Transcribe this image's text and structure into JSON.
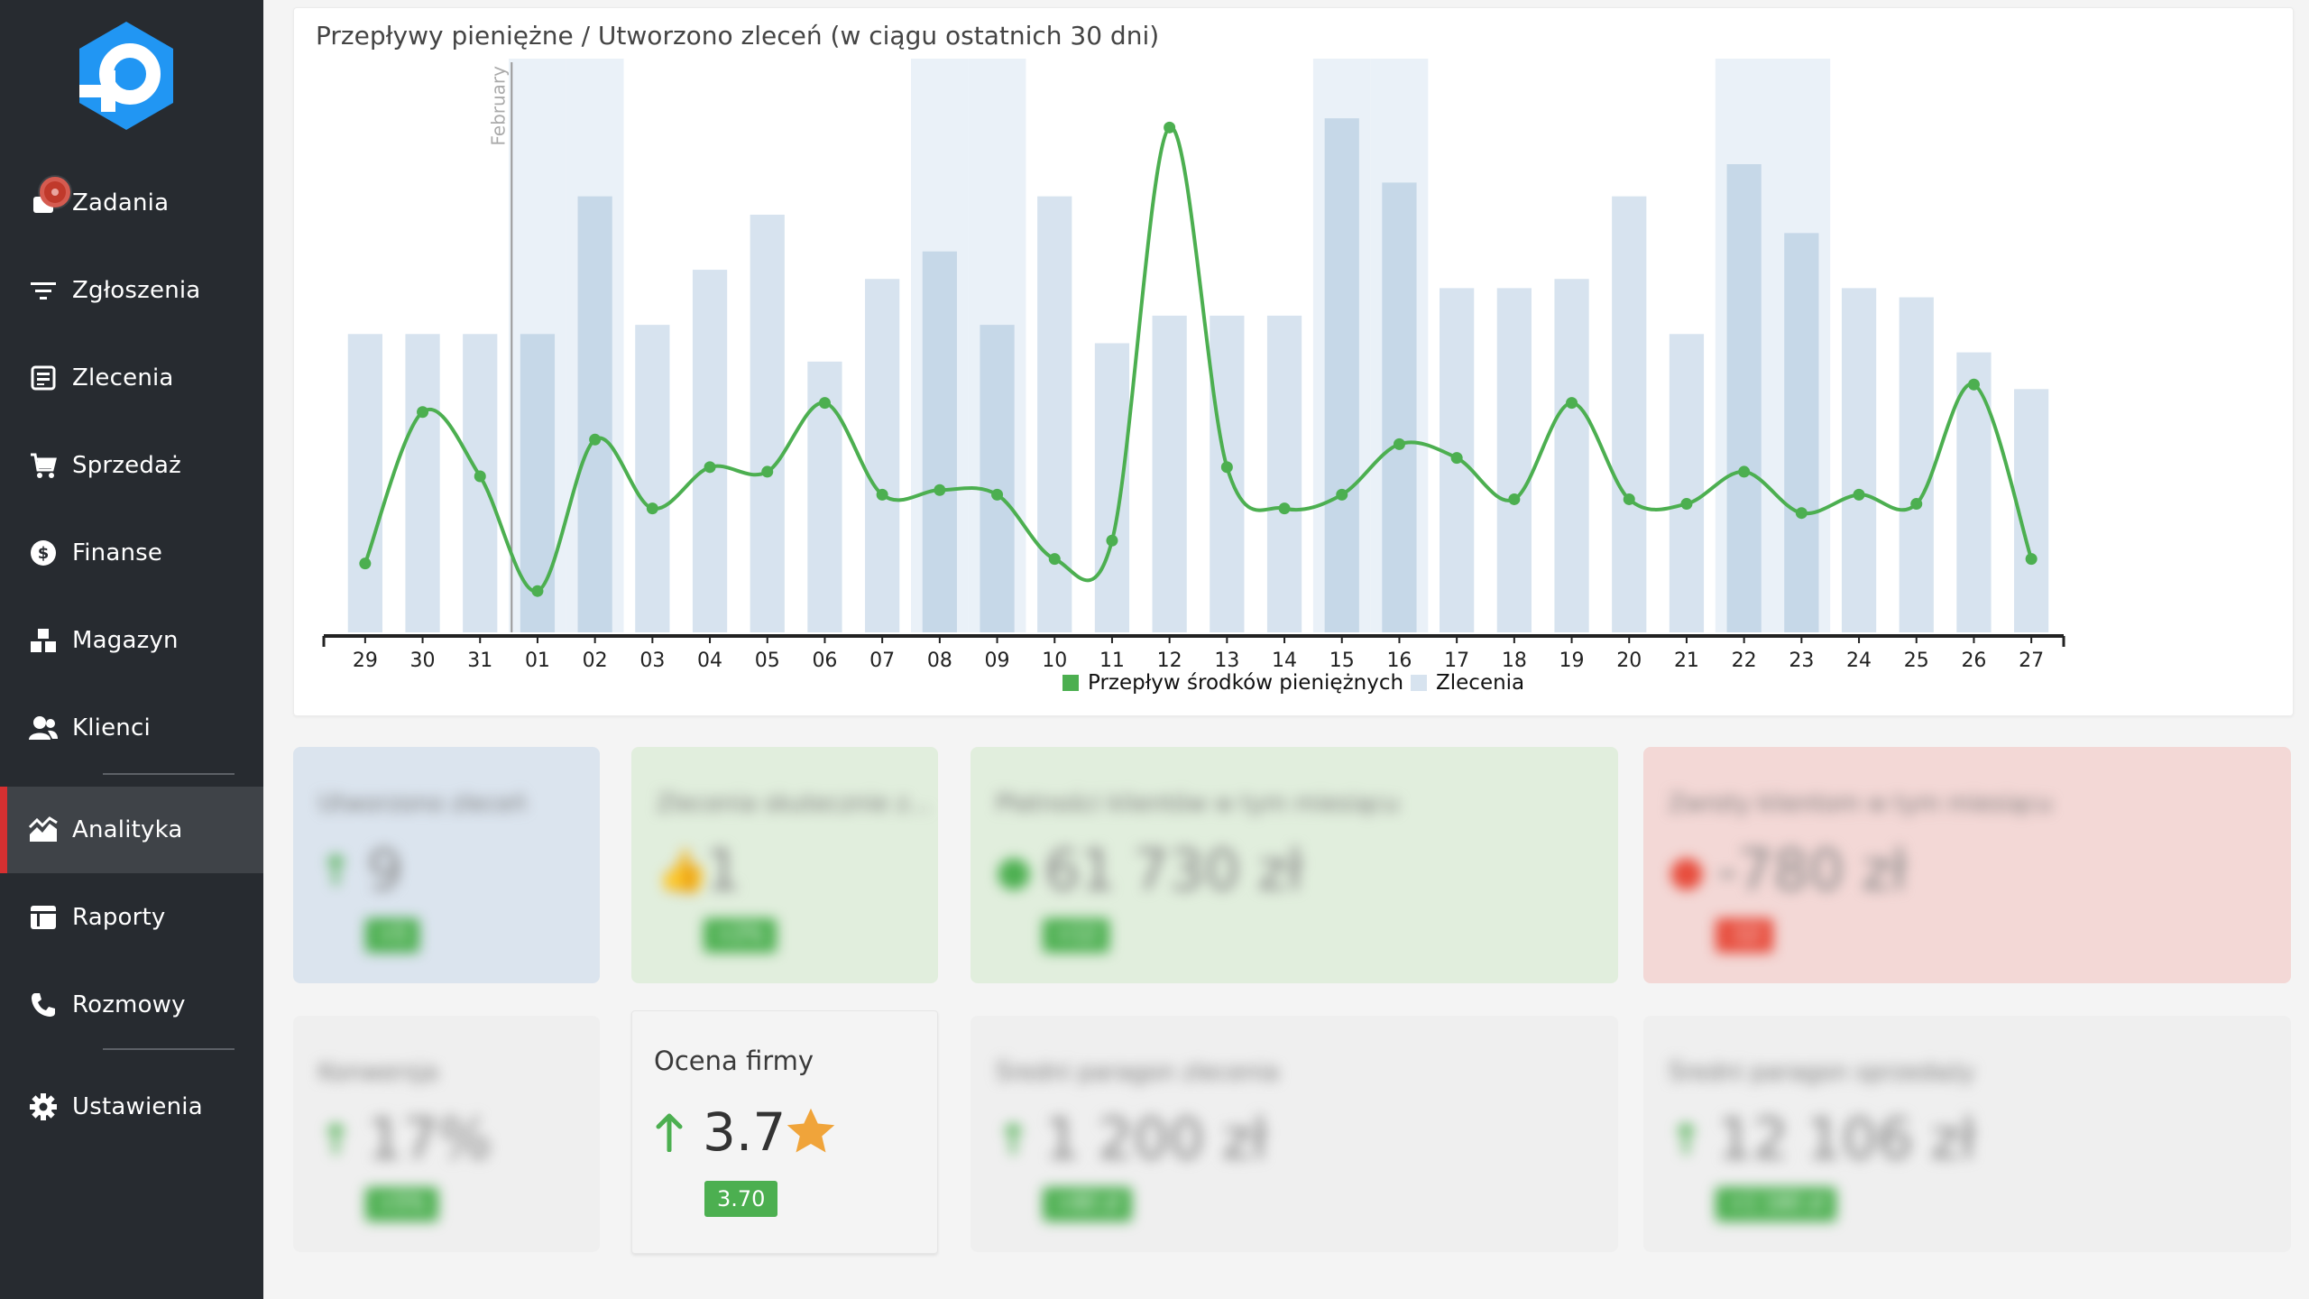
{
  "sidebar": {
    "items": [
      {
        "label": "Zadania",
        "icon": "tasks-icon"
      },
      {
        "label": "Zgłoszenia",
        "icon": "filter-icon"
      },
      {
        "label": "Zlecenia",
        "icon": "orders-icon"
      },
      {
        "label": "Sprzedaż",
        "icon": "cart-icon"
      },
      {
        "label": "Finanse",
        "icon": "dollar-icon"
      },
      {
        "label": "Magazyn",
        "icon": "warehouse-icon"
      },
      {
        "label": "Klienci",
        "icon": "users-icon"
      },
      {
        "label": "Analityka",
        "icon": "analytics-icon",
        "active": true
      },
      {
        "label": "Raporty",
        "icon": "reports-icon"
      },
      {
        "label": "Rozmowy",
        "icon": "phone-icon"
      },
      {
        "label": "Ustawienia",
        "icon": "gear-icon"
      }
    ]
  },
  "chart": {
    "title": "Przepływy pieniężne / Utworzono zleceń (w ciągu ostatnich 30 dni)",
    "month_marker": "February",
    "legend": {
      "series1": "Przepływ środków pieniężnych",
      "series2": "Zlecenia"
    }
  },
  "chart_data": {
    "type": "bar",
    "categories": [
      "29",
      "30",
      "31",
      "01",
      "02",
      "03",
      "04",
      "05",
      "06",
      "07",
      "08",
      "09",
      "10",
      "11",
      "12",
      "13",
      "14",
      "15",
      "16",
      "17",
      "18",
      "19",
      "20",
      "21",
      "22",
      "23",
      "24",
      "25",
      "26",
      "27"
    ],
    "series": [
      {
        "name": "Zlecenia",
        "type": "bar",
        "values": [
          6.5,
          6.5,
          6.5,
          6.5,
          9.5,
          6.7,
          7.9,
          9.1,
          5.9,
          7.7,
          8.3,
          6.7,
          9.5,
          6.3,
          6.9,
          6.9,
          6.9,
          11.2,
          9.8,
          7.5,
          7.5,
          7.7,
          9.5,
          6.5,
          10.2,
          8.7,
          7.5,
          7.3,
          6.1,
          5.3
        ]
      },
      {
        "name": "Przepływ środków pieniężnych",
        "type": "line",
        "values": [
          1.5,
          4.8,
          3.4,
          0.9,
          4.2,
          2.7,
          3.6,
          3.5,
          5.0,
          3.0,
          3.1,
          3.0,
          1.6,
          2.0,
          11.0,
          3.6,
          2.7,
          3.0,
          4.1,
          3.8,
          2.9,
          5.0,
          2.9,
          2.8,
          3.5,
          2.6,
          3.0,
          2.8,
          5.4,
          1.6
        ]
      }
    ],
    "highlighted_categories": [
      "01",
      "02",
      "08",
      "09",
      "15",
      "16",
      "22",
      "23"
    ],
    "ylim": [
      0,
      12.5
    ],
    "colors": {
      "bar": "#d7e3ef",
      "bar_highlight": "#c6d8e8",
      "band": "#eaf1f8",
      "line": "#4caf50"
    },
    "grid": false,
    "legend_position": "bottom-center"
  },
  "stats": [
    {
      "title": "Utworzono zleceń",
      "value": "9",
      "badge": "+5",
      "arrow": "↑",
      "color": "blue"
    },
    {
      "title": "Zlecenia skutecznie z...",
      "value": "1",
      "badge": "+2%",
      "arrow": "👍",
      "color": "green"
    },
    {
      "title": "Płatności klientów w tym miesiącu",
      "value": "61 730 zł",
      "badge": "+12",
      "arrow": "●",
      "color": "green"
    },
    {
      "title": "Zwroty klientom w tym miesiącu",
      "value": "-780 zł",
      "badge": "-12",
      "arrow": "●",
      "color": "red"
    },
    {
      "title": "Konwersja",
      "value": "17%",
      "badge": "+5%",
      "arrow": "↑",
      "color": "grey"
    },
    {
      "title": "Średni paragon zlecenia",
      "value": "1 200 zł",
      "badge": "+80 zł",
      "arrow": "↑",
      "color": "grey"
    },
    {
      "title": "Średni paragon sprzedaży",
      "value": "12 106 zł",
      "badge": "+1 180 zł",
      "arrow": "↑",
      "color": "grey"
    }
  ],
  "rating": {
    "title": "Ocena firmy",
    "value": "3.7",
    "badge": "3.70"
  }
}
